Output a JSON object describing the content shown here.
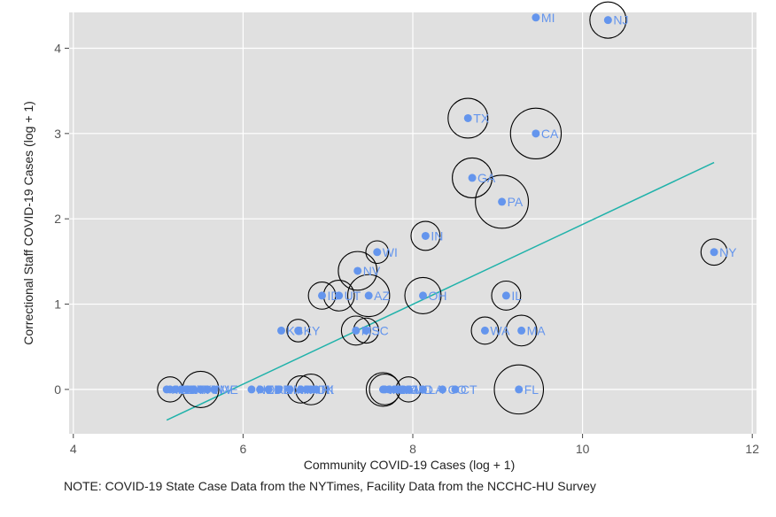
{
  "chart_data": {
    "type": "scatter",
    "xlabel": "Community  COVID-19 Cases (log + 1)",
    "ylabel": "Correctional Staff COVID-19 Cases (log + 1)",
    "xlim": [
      3.95,
      12.05
    ],
    "ylim": [
      -0.52,
      4.42
    ],
    "xticks": [
      4,
      6,
      8,
      10,
      12
    ],
    "yticks": [
      0,
      1,
      2,
      3,
      4
    ],
    "grid": true,
    "colors": {
      "panel": "#e0e0e0",
      "grid": "#ffffff",
      "point": "#6495ED",
      "fit": "#20B2AA",
      "circle": "#000000"
    },
    "fit_line": {
      "x": [
        5.1,
        11.55
      ],
      "y": [
        -0.36,
        2.66
      ]
    },
    "points": [
      {
        "label": "MI",
        "x": 9.45,
        "y": 4.36,
        "size": 0
      },
      {
        "label": "NJ",
        "x": 10.3,
        "y": 4.33,
        "size": 1.0
      },
      {
        "label": "TX",
        "x": 8.65,
        "y": 3.18,
        "size": 1.3
      },
      {
        "label": "CA",
        "x": 9.45,
        "y": 3.0,
        "size": 2.5
      },
      {
        "label": "GA",
        "x": 8.7,
        "y": 2.48,
        "size": 1.3
      },
      {
        "label": "PA",
        "x": 9.05,
        "y": 2.2,
        "size": 2.8
      },
      {
        "label": "IN",
        "x": 8.15,
        "y": 1.8,
        "size": 0.5
      },
      {
        "label": "WI",
        "x": 7.58,
        "y": 1.61,
        "size": 0.2
      },
      {
        "label": "NY",
        "x": 11.55,
        "y": 1.61,
        "size": 0.35
      },
      {
        "label": "NV",
        "x": 7.35,
        "y": 1.39,
        "size": 1.2
      },
      {
        "label": "ID",
        "x": 6.93,
        "y": 1.1,
        "size": 0.4
      },
      {
        "label": "UT",
        "x": 7.13,
        "y": 1.1,
        "size": 0.6
      },
      {
        "label": "AZ",
        "x": 7.48,
        "y": 1.1,
        "size": 1.5
      },
      {
        "label": "OH",
        "x": 8.12,
        "y": 1.1,
        "size": 1.0
      },
      {
        "label": "IL",
        "x": 9.1,
        "y": 1.1,
        "size": 0.5
      },
      {
        "label": "KS",
        "x": 6.45,
        "y": 0.69,
        "size": 0
      },
      {
        "label": "KY",
        "x": 6.65,
        "y": 0.69,
        "size": 0.2
      },
      {
        "label": "MS",
        "x": 7.33,
        "y": 0.69,
        "size": 0.5
      },
      {
        "label": "SC",
        "x": 7.45,
        "y": 0.69,
        "size": 0.3
      },
      {
        "label": "WA",
        "x": 8.85,
        "y": 0.69,
        "size": 0.4
      },
      {
        "label": "MA",
        "x": 9.28,
        "y": 0.69,
        "size": 0.6
      },
      {
        "label": "AK",
        "x": 5.1,
        "y": 0.0,
        "size": 0
      },
      {
        "label": "ND",
        "x": 5.14,
        "y": 0.0,
        "size": 0.3
      },
      {
        "label": "SD",
        "x": 5.2,
        "y": 0.0,
        "size": 0
      },
      {
        "label": "MT",
        "x": 5.27,
        "y": 0.0,
        "size": 0
      },
      {
        "label": "VT",
        "x": 5.34,
        "y": 0.0,
        "size": 0
      },
      {
        "label": "WY",
        "x": 5.42,
        "y": 0.0,
        "size": 0
      },
      {
        "label": "HI",
        "x": 5.5,
        "y": 0.0,
        "size": 1.0
      },
      {
        "label": "WV",
        "x": 5.58,
        "y": 0.0,
        "size": 0
      },
      {
        "label": "ME",
        "x": 5.66,
        "y": 0.0,
        "size": 0
      },
      {
        "label": "NE",
        "x": 6.1,
        "y": 0.0,
        "size": 0
      },
      {
        "label": "OR",
        "x": 6.2,
        "y": 0.0,
        "size": 0
      },
      {
        "label": "DE",
        "x": 6.3,
        "y": 0.0,
        "size": 0
      },
      {
        "label": "NM",
        "x": 6.42,
        "y": 0.0,
        "size": 0
      },
      {
        "label": "AR",
        "x": 6.55,
        "y": 0.0,
        "size": 0
      },
      {
        "label": "IA",
        "x": 6.68,
        "y": 0.0,
        "size": 0.4
      },
      {
        "label": "NH",
        "x": 6.75,
        "y": 0.0,
        "size": 0
      },
      {
        "label": "OK",
        "x": 6.8,
        "y": 0.0,
        "size": 0.6
      },
      {
        "label": "RI",
        "x": 6.86,
        "y": 0.0,
        "size": 0
      },
      {
        "label": "MO",
        "x": 7.65,
        "y": 0.0,
        "size": 0.8
      },
      {
        "label": "AL",
        "x": 7.67,
        "y": 0.0,
        "size": 0.6
      },
      {
        "label": "TN",
        "x": 7.72,
        "y": 0.0,
        "size": 0
      },
      {
        "label": "NC",
        "x": 7.78,
        "y": 0.0,
        "size": 0
      },
      {
        "label": "VA",
        "x": 7.82,
        "y": 0.0,
        "size": 0
      },
      {
        "label": "MN",
        "x": 7.88,
        "y": 0.0,
        "size": 0
      },
      {
        "label": "MD",
        "x": 7.95,
        "y": 0.0,
        "size": 0.3
      },
      {
        "label": "LA",
        "x": 8.12,
        "y": 0.0,
        "size": 0
      },
      {
        "label": "CO",
        "x": 8.35,
        "y": 0.0,
        "size": 0
      },
      {
        "label": "CT",
        "x": 8.5,
        "y": 0.0,
        "size": 0
      },
      {
        "label": "FL",
        "x": 9.25,
        "y": 0.0,
        "size": 2.3
      }
    ]
  },
  "note": "NOTE: COVID-19 State Case Data from the NYTimes, Facility Data from the NCCHC-HU Survey"
}
